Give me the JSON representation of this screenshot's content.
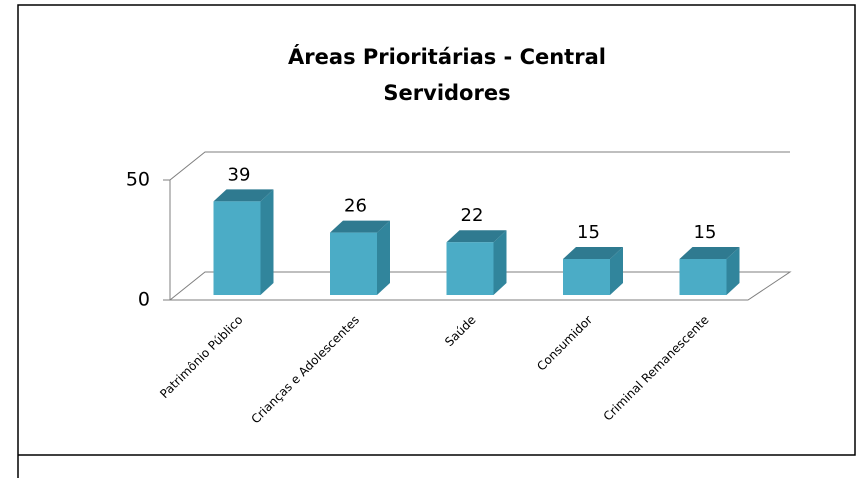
{
  "chart_data": {
    "type": "bar3d",
    "title": [
      "Áreas Prioritárias - Central",
      "Servidores"
    ],
    "categories": [
      "Patrimônio Público",
      "Crianças e Adolescentes",
      "Saúde",
      "Consumidor",
      "Criminal Remanescente"
    ],
    "values": [
      39,
      26,
      22,
      15,
      15
    ],
    "color": "#4bacc6",
    "ylim": [
      0,
      50
    ],
    "yticks": [
      0,
      50
    ],
    "grid": true
  }
}
